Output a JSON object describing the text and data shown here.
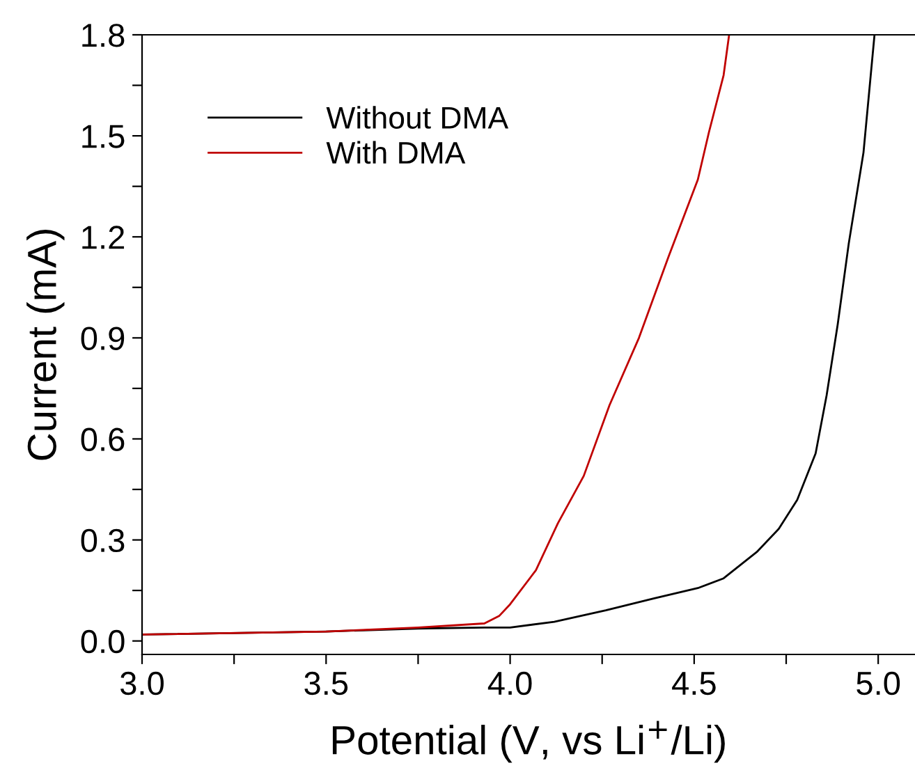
{
  "chart_data": {
    "type": "line",
    "xlabel": "Potential (V, vs Li$^{+}$/Li)",
    "ylabel": "Current (mA)",
    "xlim": [
      3.0,
      5.1
    ],
    "ylim": [
      -0.04,
      1.8
    ],
    "xticks": [
      {
        "value": 3,
        "label": "3.0"
      },
      {
        "value": 3.25,
        "label": null
      },
      3.5,
      {
        "value": 3.75,
        "label": null
      },
      {
        "value": 4,
        "label": "4.0"
      },
      {
        "value": 4.25,
        "label": null
      },
      4.5,
      {
        "value": 4.75,
        "label": null
      },
      {
        "value": 5,
        "label": "5.0"
      }
    ],
    "yticks": [
      {
        "value": 0,
        "label": "0.0"
      },
      {
        "value": 0.15,
        "label": null
      },
      0.3,
      {
        "value": 0.45,
        "label": null
      },
      0.6,
      {
        "value": 0.75,
        "label": null
      },
      0.9,
      {
        "value": 1.05,
        "label": null
      },
      1.2,
      {
        "value": 1.35,
        "label": null
      },
      1.5,
      {
        "value": 1.65,
        "label": null
      },
      1.8
    ],
    "grid": false,
    "legend": "top left",
    "line_style": "solid",
    "marker": "none",
    "series": [
      {
        "name": "Without DMA",
        "color": "#000000",
        "x": [
          3.0,
          3.5,
          3.75,
          3.93,
          4.0,
          4.12,
          4.26,
          4.39,
          4.51,
          4.58,
          4.67,
          4.73,
          4.78,
          4.83,
          4.86,
          4.89,
          4.92,
          4.96,
          4.99
        ],
        "values": [
          0.019,
          0.028,
          0.037,
          0.04,
          0.04,
          0.057,
          0.091,
          0.126,
          0.157,
          0.186,
          0.264,
          0.333,
          0.419,
          0.557,
          0.73,
          0.94,
          1.18,
          1.45,
          1.8
        ]
      },
      {
        "name": "With DMA",
        "color": "#c00000",
        "x": [
          3.0,
          3.5,
          3.75,
          3.93,
          3.97,
          4.0,
          4.07,
          4.13,
          4.2,
          4.27,
          4.35,
          4.43,
          4.51,
          4.54,
          4.58,
          4.595
        ],
        "values": [
          0.019,
          0.028,
          0.04,
          0.052,
          0.074,
          0.109,
          0.21,
          0.35,
          0.49,
          0.7,
          0.9,
          1.14,
          1.37,
          1.51,
          1.68,
          1.8
        ]
      }
    ]
  }
}
